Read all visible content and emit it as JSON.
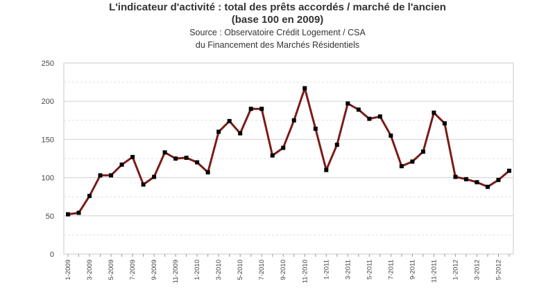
{
  "chart_data": {
    "type": "line",
    "title": "L'indicateur d'activité : total des prêts accordés / marché de l'ancien",
    "title_line2": "(base 100 en 2009)",
    "subtitle": "Source : Observatoire Crédit Logement / CSA",
    "subtitle_line2": "du Financement des Marchés Résidentiels",
    "xlabel": "",
    "ylabel": "",
    "ylim": [
      0,
      250
    ],
    "y_ticks": [
      0,
      50,
      100,
      150,
      200,
      250
    ],
    "grid": true,
    "legend": "none",
    "line_color": "#7a1b16",
    "marker_color": "#000000",
    "x_tick_labels": [
      "1-2009",
      "3-2009",
      "5-2009",
      "7-2009",
      "9-2009",
      "11-2009",
      "1-2010",
      "3-2010",
      "5-2010",
      "7-2010",
      "9-2010",
      "11-2010",
      "1-2011",
      "3-2011",
      "5-2011",
      "7-2011",
      "9-2011",
      "11-2011",
      "1-2012",
      "3-2012",
      "5-2012"
    ],
    "x": [
      "1-2009",
      "2-2009",
      "3-2009",
      "4-2009",
      "5-2009",
      "6-2009",
      "7-2009",
      "8-2009",
      "9-2009",
      "10-2009",
      "11-2009",
      "12-2009",
      "1-2010",
      "2-2010",
      "3-2010",
      "4-2010",
      "5-2010",
      "6-2010",
      "7-2010",
      "8-2010",
      "9-2010",
      "10-2010",
      "11-2010",
      "12-2010",
      "1-2011",
      "2-2011",
      "3-2011",
      "4-2011",
      "5-2011",
      "6-2011",
      "7-2011",
      "8-2011",
      "9-2011",
      "10-2011",
      "11-2011",
      "12-2011",
      "1-2012",
      "2-2012",
      "3-2012",
      "4-2012",
      "5-2012",
      "6-2012"
    ],
    "series": [
      {
        "values": [
          52,
          54,
          76,
          103,
          103,
          117,
          127,
          91,
          101,
          133,
          125,
          126,
          120,
          107,
          160,
          174,
          158,
          190,
          190,
          129,
          139,
          175,
          217,
          164,
          110,
          143,
          197,
          189,
          177,
          180,
          155,
          115,
          121,
          134,
          185,
          171,
          101,
          98,
          94,
          88,
          97,
          109
        ]
      }
    ]
  }
}
